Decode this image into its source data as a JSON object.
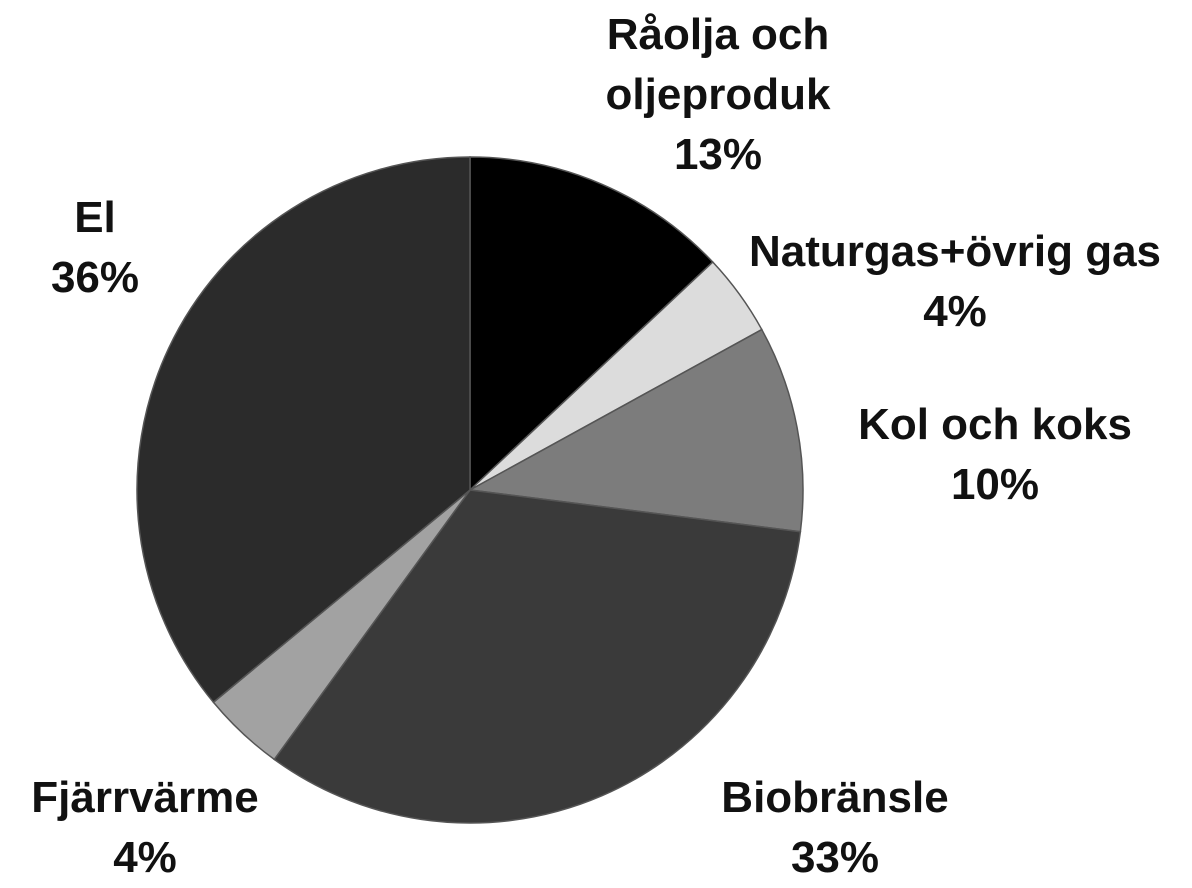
{
  "chart_data": {
    "type": "pie",
    "categories": [
      "Råolja och oljeproduk",
      "Naturgas+övrig gas",
      "Kol och koks",
      "Biobränsle",
      "Fjärrvärme",
      "El"
    ],
    "values": [
      13,
      4,
      10,
      33,
      4,
      36
    ],
    "value_labels": [
      "13%",
      "4%",
      "10%",
      "33%",
      "4%",
      "36%"
    ],
    "colors": [
      "#000000",
      "#dcdcdc",
      "#7c7c7c",
      "#3a3a3a",
      "#a2a2a2",
      "#2b2b2b"
    ]
  }
}
